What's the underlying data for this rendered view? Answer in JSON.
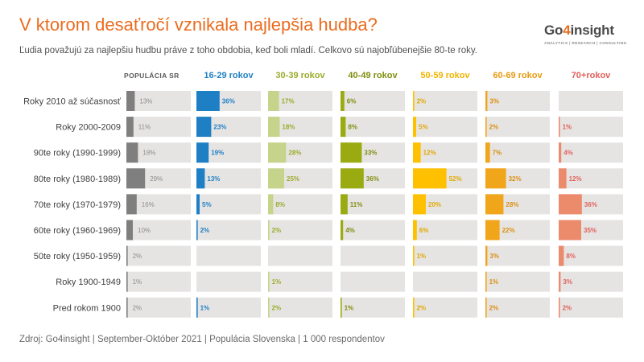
{
  "header": {
    "title": "V ktorom desaťročí vznikala najlepšia hudba?",
    "subtitle": "Ľudia považujú za najlepšiu hudbu práve z toho obdobia, keď boli mladí. Celkovo sú najobľúbenejšie 80-te roky.",
    "logo_text_a": "Go",
    "logo_text_b": "4",
    "logo_text_c": "insight",
    "logo_tagline": "ANALYTICS | RESEARCH | CONSULTING"
  },
  "footer": {
    "source": "Zdroj: Go4insight | September-Október 2021 | Populácia Slovenska | 1 000 respondentov"
  },
  "chart_data": {
    "type": "bar",
    "layout": "small-multiples",
    "categories": [
      "Roky 2010 až súčasnosť",
      "Roky 2000-2009",
      "90te roky (1990-1999)",
      "80te roky (1980-1989)",
      "70te roky (1970-1979)",
      "60te roky (1960-1969)",
      "50te roky (1950-1959)",
      "Roky 1900-1949",
      "Pred rokom 1900"
    ],
    "series": [
      {
        "name": "POPULÁCIA SR",
        "color": "#7f7f7f",
        "label_color": "#8c8c8c",
        "header_color": "#595959",
        "values": [
          13,
          11,
          18,
          29,
          16,
          10,
          2,
          1,
          2
        ]
      },
      {
        "name": "16-29 rokov",
        "color": "#1f7fc4",
        "label_color": "#1f7fc4",
        "header_color": "#1f7fc4",
        "values": [
          36,
          23,
          19,
          13,
          5,
          2,
          null,
          null,
          1
        ]
      },
      {
        "name": "30-39 rokov",
        "color": "#c5d48a",
        "label_color": "#9aab2a",
        "header_color": "#9aab2a",
        "values": [
          17,
          18,
          28,
          25,
          8,
          2,
          null,
          1,
          2
        ]
      },
      {
        "name": "40-49 rokov",
        "color": "#9aab12",
        "label_color": "#7f8c0c",
        "header_color": "#7f8c0c",
        "values": [
          6,
          8,
          33,
          36,
          11,
          4,
          null,
          null,
          1
        ]
      },
      {
        "name": "50-59 rokov",
        "color": "#ffc000",
        "label_color": "#e0a800",
        "header_color": "#f0b400",
        "values": [
          2,
          5,
          12,
          52,
          20,
          6,
          1,
          null,
          2
        ]
      },
      {
        "name": "60-69 rokov",
        "color": "#f0a51a",
        "label_color": "#d98f10",
        "header_color": "#e89a12",
        "values": [
          3,
          2,
          7,
          32,
          28,
          22,
          3,
          1,
          2
        ]
      },
      {
        "name": "70+rokov",
        "color": "#ec8a6c",
        "label_color": "#e0605a",
        "header_color": "#e0605a",
        "values": [
          null,
          1,
          4,
          12,
          36,
          35,
          8,
          3,
          2
        ]
      }
    ],
    "value_suffix": "%",
    "xlim": [
      0,
      100
    ],
    "grid": false,
    "legend": "none"
  }
}
